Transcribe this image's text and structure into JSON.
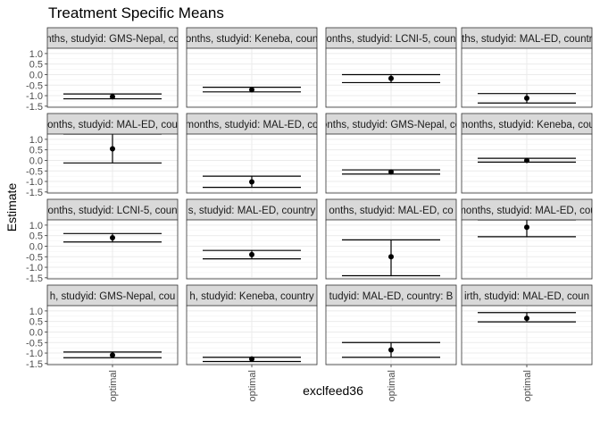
{
  "chart_data": {
    "type": "scatter",
    "title": "Treatment Specific Means",
    "xlabel": "exclfeed36",
    "ylabel": "Estimate",
    "x_categories": [
      "optimal"
    ],
    "y_ticks": [
      1.0,
      0.5,
      0.0,
      -0.5,
      -1.0,
      -1.5
    ],
    "y_tick_labels": [
      "1.0",
      "0.5",
      "0.0",
      "-0.5",
      "-1.0",
      "-1.5"
    ],
    "ylim": [
      -1.55,
      1.25
    ],
    "grid": true,
    "layout": {
      "rows": 4,
      "cols": 4
    },
    "panels": [
      {
        "strip": "nths, studyid: GMS-Nepal, co",
        "estimate": -1.05,
        "lower": -1.15,
        "upper": -0.92
      },
      {
        "strip": "onths, studyid: Keneba, coun",
        "estimate": -0.72,
        "lower": -0.82,
        "upper": -0.6
      },
      {
        "strip": "onths, studyid: LCNI-5, coun",
        "estimate": -0.18,
        "lower": -0.38,
        "upper": 0.0
      },
      {
        "strip": "nths, studyid: MAL-ED, country",
        "estimate": -1.12,
        "lower": -1.35,
        "upper": -0.9
      },
      {
        "strip": "onths, studyid: MAL-ED, cou",
        "estimate": 0.55,
        "lower": -0.12,
        "upper": 1.25
      },
      {
        "strip": "months, studyid: MAL-ED, co",
        "estimate": -1.02,
        "lower": -1.28,
        "upper": -0.75
      },
      {
        "strip": "onths, studyid: GMS-Nepal, co",
        "estimate": -0.55,
        "lower": -0.65,
        "upper": -0.45
      },
      {
        "strip": "months, studyid: Keneba, cou",
        "estimate": 0.0,
        "lower": -0.08,
        "upper": 0.1
      },
      {
        "strip": "onths, studyid: LCNI-5, coun",
        "estimate": 0.4,
        "lower": 0.2,
        "upper": 0.6
      },
      {
        "strip": "s, studyid: MAL-ED, country",
        "estimate": -0.4,
        "lower": -0.6,
        "upper": -0.2
      },
      {
        "strip": "onths, studyid: MAL-ED, co",
        "estimate": -0.5,
        "lower": -1.4,
        "upper": 0.3
      },
      {
        "strip": "months, studyid: MAL-ED, cou",
        "estimate": 0.9,
        "lower": 0.45,
        "upper": 1.25
      },
      {
        "strip": "h, studyid: GMS-Nepal, cou",
        "estimate": -1.1,
        "lower": -1.22,
        "upper": -0.95
      },
      {
        "strip": "h, studyid: Keneba, country",
        "estimate": -1.28,
        "lower": -1.4,
        "upper": -1.2
      },
      {
        "strip": "tudyid: MAL-ED, country: B",
        "estimate": -0.85,
        "lower": -1.2,
        "upper": -0.5
      },
      {
        "strip": "irth, studyid: MAL-ED, coun",
        "estimate": 0.65,
        "lower": 0.48,
        "upper": 0.92
      }
    ]
  }
}
